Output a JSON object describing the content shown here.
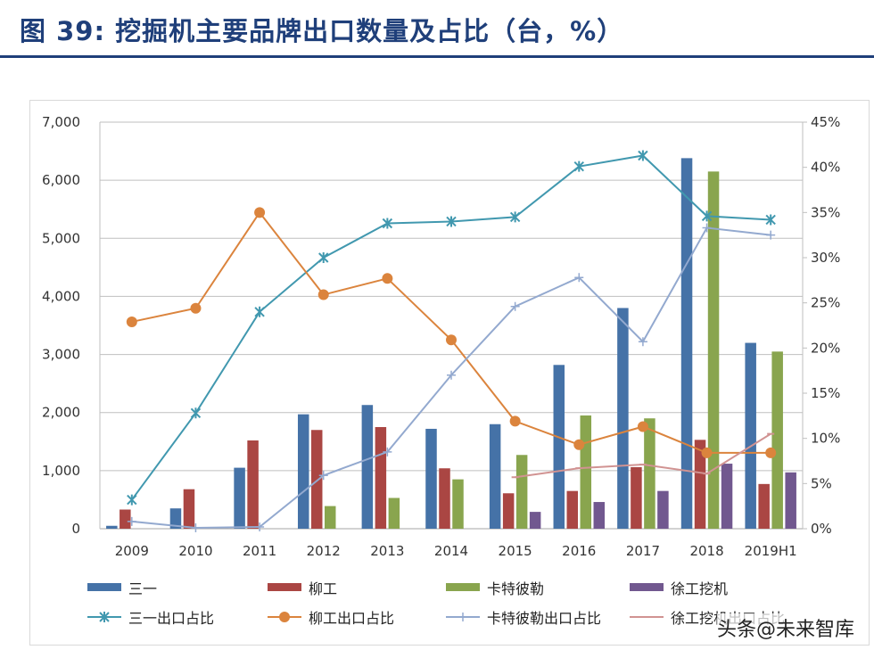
{
  "title": "图 39: 挖掘机主要品牌出口数量及占比（台，%）",
  "watermark": "头条@未来智库",
  "chart_data": {
    "type": "bar+line",
    "categories": [
      "2009",
      "2010",
      "2011",
      "2012",
      "2013",
      "2014",
      "2015",
      "2016",
      "2017",
      "2018",
      "2019H1"
    ],
    "ylim_left": [
      0,
      7000
    ],
    "yticks_left": [
      "0",
      "1,000",
      "2,000",
      "3,000",
      "4,000",
      "5,000",
      "6,000",
      "7,000"
    ],
    "ylim_right": [
      0,
      45
    ],
    "yticks_right": [
      "0%",
      "5%",
      "10%",
      "15%",
      "20%",
      "25%",
      "30%",
      "35%",
      "40%",
      "45%"
    ],
    "grid": true,
    "legend": "bottom",
    "bars": [
      {
        "name": "三一",
        "color": "#4572a7",
        "values": [
          50,
          350,
          1050,
          1970,
          2130,
          1720,
          1800,
          2820,
          3800,
          6380,
          3200
        ]
      },
      {
        "name": "柳工",
        "color": "#aa4643",
        "values": [
          330,
          680,
          1520,
          1700,
          1750,
          1040,
          610,
          650,
          1060,
          1530,
          770
        ]
      },
      {
        "name": "卡特彼勒",
        "color": "#89a54e",
        "values": [
          0,
          0,
          0,
          390,
          530,
          850,
          1270,
          1950,
          1900,
          6150,
          3050
        ]
      },
      {
        "name": "徐工挖机",
        "color": "#71588f",
        "values": [
          0,
          0,
          0,
          0,
          0,
          0,
          290,
          460,
          650,
          1120,
          970
        ]
      }
    ],
    "lines": [
      {
        "name": "三一出口占比",
        "color": "#4198af",
        "marker": "asterisk",
        "values": [
          3.2,
          12.8,
          24.0,
          30.0,
          33.8,
          34.0,
          34.5,
          40.1,
          41.3,
          34.6,
          34.2
        ]
      },
      {
        "name": "柳工出口占比",
        "color": "#db843d",
        "marker": "circle",
        "values": [
          22.9,
          24.4,
          35.0,
          25.9,
          27.7,
          20.9,
          11.9,
          9.3,
          11.3,
          8.4,
          8.4
        ]
      },
      {
        "name": "卡特彼勒出口占比",
        "color": "#93a9cf",
        "marker": "plus",
        "values": [
          0.8,
          0.1,
          0.2,
          5.9,
          8.5,
          17.0,
          24.6,
          27.8,
          20.7,
          33.3,
          32.5
        ]
      },
      {
        "name": "徐工挖机出口占比",
        "color": "#d19392",
        "marker": "dash",
        "values": [
          null,
          null,
          null,
          null,
          null,
          null,
          5.7,
          6.7,
          7.1,
          6.1,
          10.5
        ]
      }
    ]
  }
}
